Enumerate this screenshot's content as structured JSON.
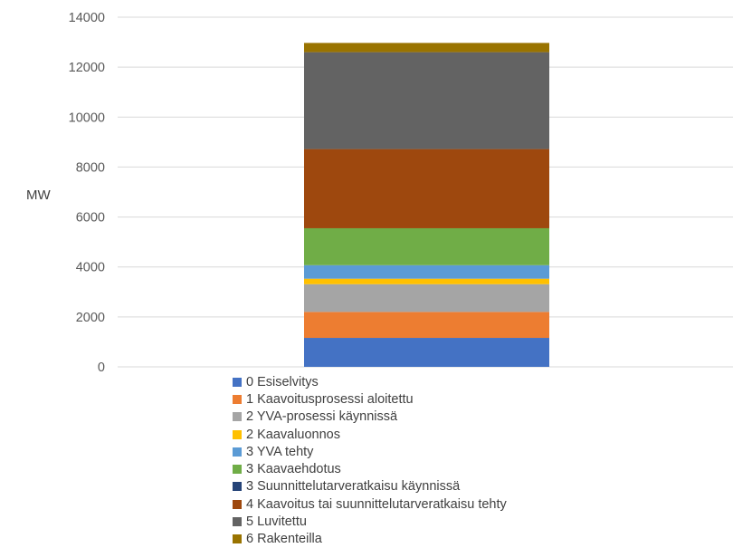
{
  "chart_data": {
    "type": "bar",
    "stacked": true,
    "categories": [
      ""
    ],
    "ylabel": "MW",
    "ylim": [
      0,
      14000
    ],
    "yticks": [
      0,
      2000,
      4000,
      6000,
      8000,
      10000,
      12000,
      14000
    ],
    "grid": true,
    "legend_position": "bottom",
    "series": [
      {
        "name": "0 Esiselvitys",
        "values": [
          1160
        ],
        "color": "#4472C4"
      },
      {
        "name": "1 Kaavoitusprosessi aloitettu",
        "values": [
          1040
        ],
        "color": "#ED7D31"
      },
      {
        "name": "2 YVA-prosessi käynnissä",
        "values": [
          1110
        ],
        "color": "#A5A5A5"
      },
      {
        "name": "2 Kaavaluonnos",
        "values": [
          220
        ],
        "color": "#FFC000"
      },
      {
        "name": "3 YVA tehty",
        "values": [
          540
        ],
        "color": "#5B9BD5"
      },
      {
        "name": "3 Kaavaehdotus",
        "values": [
          1480
        ],
        "color": "#70AD47"
      },
      {
        "name": "3 Suunnittelutarveratkaisu käynnissä",
        "values": [
          0
        ],
        "color": "#264478"
      },
      {
        "name": "4 Kaavoitus tai suunnittelutarveratkaisu tehty",
        "values": [
          3170
        ],
        "color": "#9E480E"
      },
      {
        "name": "5 Luvitettu",
        "values": [
          3880
        ],
        "color": "#636363"
      },
      {
        "name": "6 Rakenteilla",
        "values": [
          370
        ],
        "color": "#997300"
      }
    ]
  }
}
